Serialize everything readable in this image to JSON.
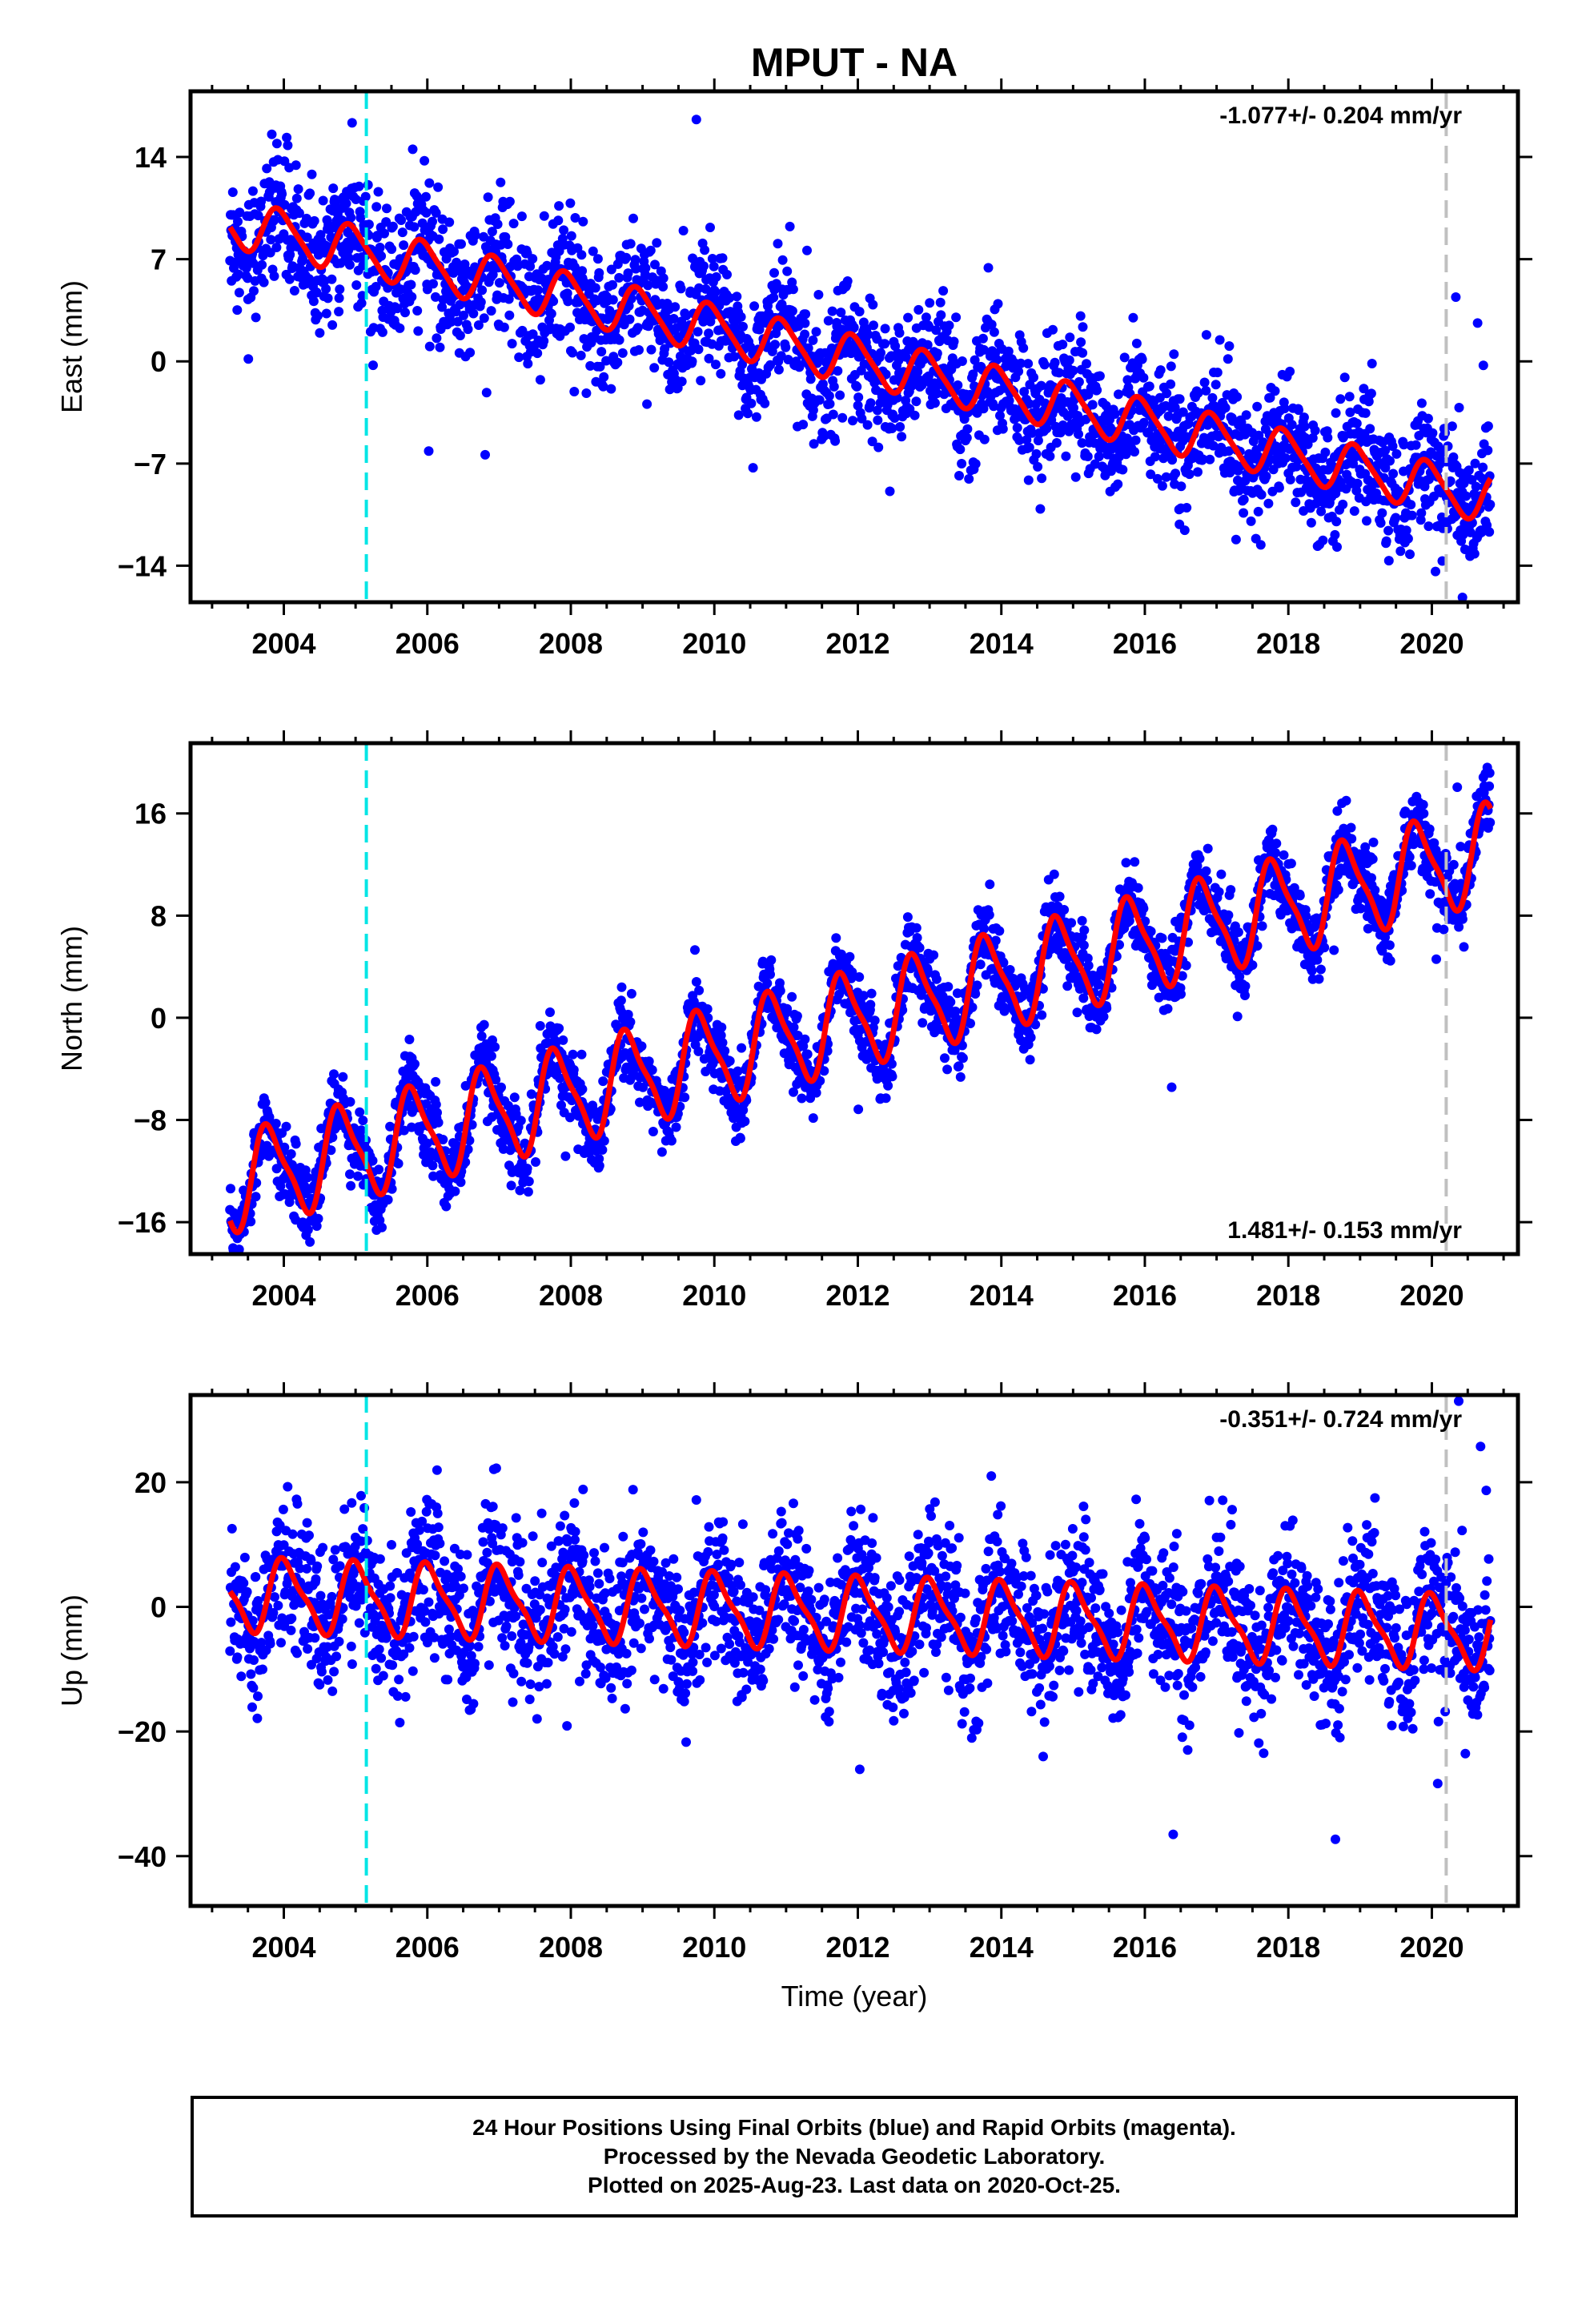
{
  "title": "MPUT - NA",
  "xlabel": "Time (year)",
  "footer": {
    "line1": "24 Hour Positions Using Final Orbits (blue) and Rapid Orbits (magenta).",
    "line2": "Processed by the Nevada Geodetic Laboratory.",
    "line3": "Plotted on 2025-Aug-23. Last data on 2020-Oct-25."
  },
  "colors": {
    "points": "#0000ff",
    "fit": "#ff0000",
    "cyan_marker": "#00e5e5",
    "gray_marker": "#c0c0c0"
  },
  "chart_data": [
    {
      "type": "scatter",
      "panel": "east",
      "ylabel": "East (mm)",
      "rate": "-1.077+/- 0.204 mm/yr",
      "rate_position": "top-right",
      "xlim": [
        2002.7,
        2021.2
      ],
      "ylim": [
        -16.5,
        18.5
      ],
      "xticks": [
        2004,
        2006,
        2008,
        2010,
        2012,
        2014,
        2016,
        2018,
        2020
      ],
      "yticks": [
        -14,
        -7,
        0,
        7,
        14
      ],
      "markers": [
        2005.15,
        2020.2
      ],
      "data_range": [
        2003.25,
        2020.82
      ],
      "fit": {
        "intercept": 9.5,
        "slope": -1.077,
        "annual_amp": 1.6,
        "annual_phase": 0.7,
        "semiannual_amp": 0.3
      },
      "scatter_spread": 2.2,
      "series": [
        {
          "name": "Final Orbits (blue)",
          "color": "#0000ff"
        },
        {
          "name": "fit",
          "color": "#ff0000"
        }
      ]
    },
    {
      "type": "scatter",
      "panel": "north",
      "ylabel": "North (mm)",
      "rate": "1.481+/- 0.153 mm/yr",
      "rate_position": "bottom-right",
      "xlim": [
        2002.7,
        2021.2
      ],
      "ylim": [
        -18.5,
        21.5
      ],
      "xticks": [
        2004,
        2006,
        2008,
        2010,
        2012,
        2014,
        2016,
        2018,
        2020
      ],
      "yticks": [
        -16,
        -8,
        0,
        8,
        16
      ],
      "markers": [
        2005.15,
        2020.2
      ],
      "data_range": [
        2003.25,
        2020.82
      ],
      "fit": {
        "intercept": -13.0,
        "slope": 1.481,
        "annual_amp": 3.6,
        "annual_phase": 0.55,
        "semiannual_amp": 0.9
      },
      "scatter_spread": 1.5,
      "series": [
        {
          "name": "Final Orbits (blue)",
          "color": "#0000ff"
        },
        {
          "name": "fit",
          "color": "#ff0000"
        }
      ]
    },
    {
      "type": "scatter",
      "panel": "up",
      "ylabel": "Up (mm)",
      "rate": "-0.351+/- 0.724 mm/yr",
      "rate_position": "top-right",
      "xlim": [
        2002.7,
        2021.2
      ],
      "ylim": [
        -48,
        34
      ],
      "xticks": [
        2004,
        2006,
        2008,
        2010,
        2012,
        2014,
        2016,
        2018,
        2020
      ],
      "yticks": [
        -40,
        -20,
        0,
        20
      ],
      "markers": [
        2005.15,
        2020.2
      ],
      "data_range": [
        2003.25,
        2020.82
      ],
      "fit": {
        "intercept": 2.0,
        "slope": -0.351,
        "annual_amp": 5.5,
        "annual_phase": 0.78,
        "semiannual_amp": 1.5
      },
      "scatter_spread": 6.0,
      "series": [
        {
          "name": "Final Orbits (blue)",
          "color": "#0000ff"
        },
        {
          "name": "fit",
          "color": "#ff0000"
        }
      ]
    }
  ]
}
